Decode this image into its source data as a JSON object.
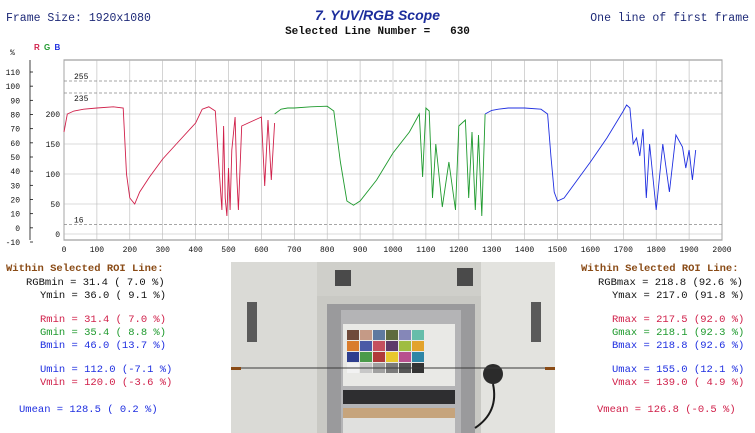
{
  "header": {
    "frame_size": "Frame Size: 1920x1080",
    "title": "7. YUV/RGB Scope",
    "selected_line_label": "Selected Line Number =",
    "selected_line_value": "630",
    "mode": "One line of first frame"
  },
  "legend": {
    "r": "R",
    "g": "G",
    "b": "B",
    "r_color": "#d0204a",
    "g_color": "#1f9a2e",
    "b_color": "#1f2fe0"
  },
  "chart_data": {
    "type": "line",
    "title": "",
    "xlabel": "",
    "ylabel": "",
    "xlim": [
      0,
      2000
    ],
    "ylim": [
      -10,
      290
    ],
    "x_ticks": [
      "0",
      "100",
      "200",
      "300",
      "400",
      "500",
      "600",
      "700",
      "800",
      "900",
      "1000",
      "1100",
      "1200",
      "1300",
      "1400",
      "1500",
      "1600",
      "1700",
      "1800",
      "1900",
      "2000"
    ],
    "y_ticks_left": [
      "110",
      "100",
      "90",
      "80",
      "70",
      "60",
      "50",
      "40",
      "30",
      "20",
      "10",
      "0",
      "-10"
    ],
    "y_ticks_left_unit": "%",
    "y_ticks_right": [
      "0",
      "50",
      "100",
      "150",
      "200"
    ],
    "ref_labels": [
      "255",
      "235",
      "16"
    ],
    "ref_lines": [
      255,
      235,
      16
    ],
    "series": [
      {
        "color": "#d0204a",
        "x": [
          0,
          10,
          30,
          60,
          100,
          150,
          180,
          190,
          200,
          215,
          230,
          260,
          300,
          350,
          400,
          420,
          440,
          460,
          470,
          480,
          485,
          490,
          495,
          500,
          505,
          510,
          520,
          525,
          530,
          540,
          560,
          580,
          600,
          610,
          620,
          630,
          640
        ],
        "y": [
          170,
          200,
          205,
          208,
          210,
          212,
          210,
          100,
          60,
          50,
          70,
          95,
          125,
          155,
          185,
          208,
          212,
          205,
          120,
          40,
          180,
          60,
          30,
          110,
          40,
          140,
          195,
          100,
          40,
          180,
          185,
          190,
          195,
          80,
          190,
          90,
          185
        ]
      },
      {
        "color": "#1f9a2e",
        "x": [
          640,
          660,
          680,
          700,
          750,
          800,
          820,
          840,
          860,
          880,
          900,
          950,
          1000,
          1050,
          1080,
          1090,
          1100,
          1110,
          1120,
          1130,
          1150,
          1170,
          1190,
          1200,
          1220,
          1230,
          1240,
          1250,
          1260,
          1270,
          1280
        ],
        "y": [
          200,
          208,
          210,
          210,
          212,
          213,
          205,
          120,
          55,
          48,
          55,
          90,
          135,
          170,
          200,
          95,
          210,
          205,
          60,
          150,
          45,
          120,
          40,
          180,
          190,
          60,
          170,
          40,
          165,
          30,
          200
        ]
      },
      {
        "color": "#1f2fe0",
        "x": [
          1280,
          1300,
          1320,
          1350,
          1400,
          1450,
          1470,
          1480,
          1490,
          1500,
          1520,
          1540,
          1600,
          1650,
          1700,
          1710,
          1720,
          1730,
          1740,
          1750,
          1760,
          1770,
          1780,
          1800,
          1820,
          1840,
          1860,
          1880,
          1890,
          1900,
          1910,
          1920
        ],
        "y": [
          200,
          206,
          208,
          210,
          210,
          208,
          200,
          130,
          70,
          55,
          60,
          75,
          120,
          160,
          205,
          215,
          210,
          150,
          160,
          130,
          175,
          60,
          150,
          40,
          150,
          70,
          165,
          145,
          110,
          140,
          90,
          140
        ]
      }
    ],
    "grid": true
  },
  "left_stats": {
    "header": "Within Selected ROI Line:",
    "rgbmin": "RGBmin = 31.4 ( 7.0 %)",
    "ymin": "Ymin = 36.0 ( 9.1 %)",
    "rmin": "Rmin = 31.4 ( 7.0 %)",
    "gmin": "Gmin = 35.4 ( 8.8 %)",
    "bmin": "Bmin = 46.0 (13.7 %)",
    "umin": "Umin = 112.0 (-7.1 %)",
    "vmin": "Vmin = 120.0 (-3.6 %)",
    "umean": "Umean = 128.5 ( 0.2 %)"
  },
  "right_stats": {
    "header": "Within Selected ROI Line:",
    "rgbmax": "RGBmax = 218.8 (92.6 %)",
    "ymax": "Ymax = 217.0 (91.8 %)",
    "rmax": "Rmax = 217.5 (92.0 %)",
    "gmax": "Gmax = 218.1 (92.3 %)",
    "bmax": "Bmax = 218.8 (92.6 %)",
    "umax": "Umax = 155.0 (12.1 %)",
    "vmax": "Vmax = 139.0 ( 4.9 %)",
    "vmean": "Vmean = 126.8 (-0.5 %)"
  },
  "colors": {
    "black": "#111111",
    "red": "#d0204a",
    "green": "#1f9a2e",
    "blue": "#1f2fe0",
    "brown": "#8a4b16"
  }
}
